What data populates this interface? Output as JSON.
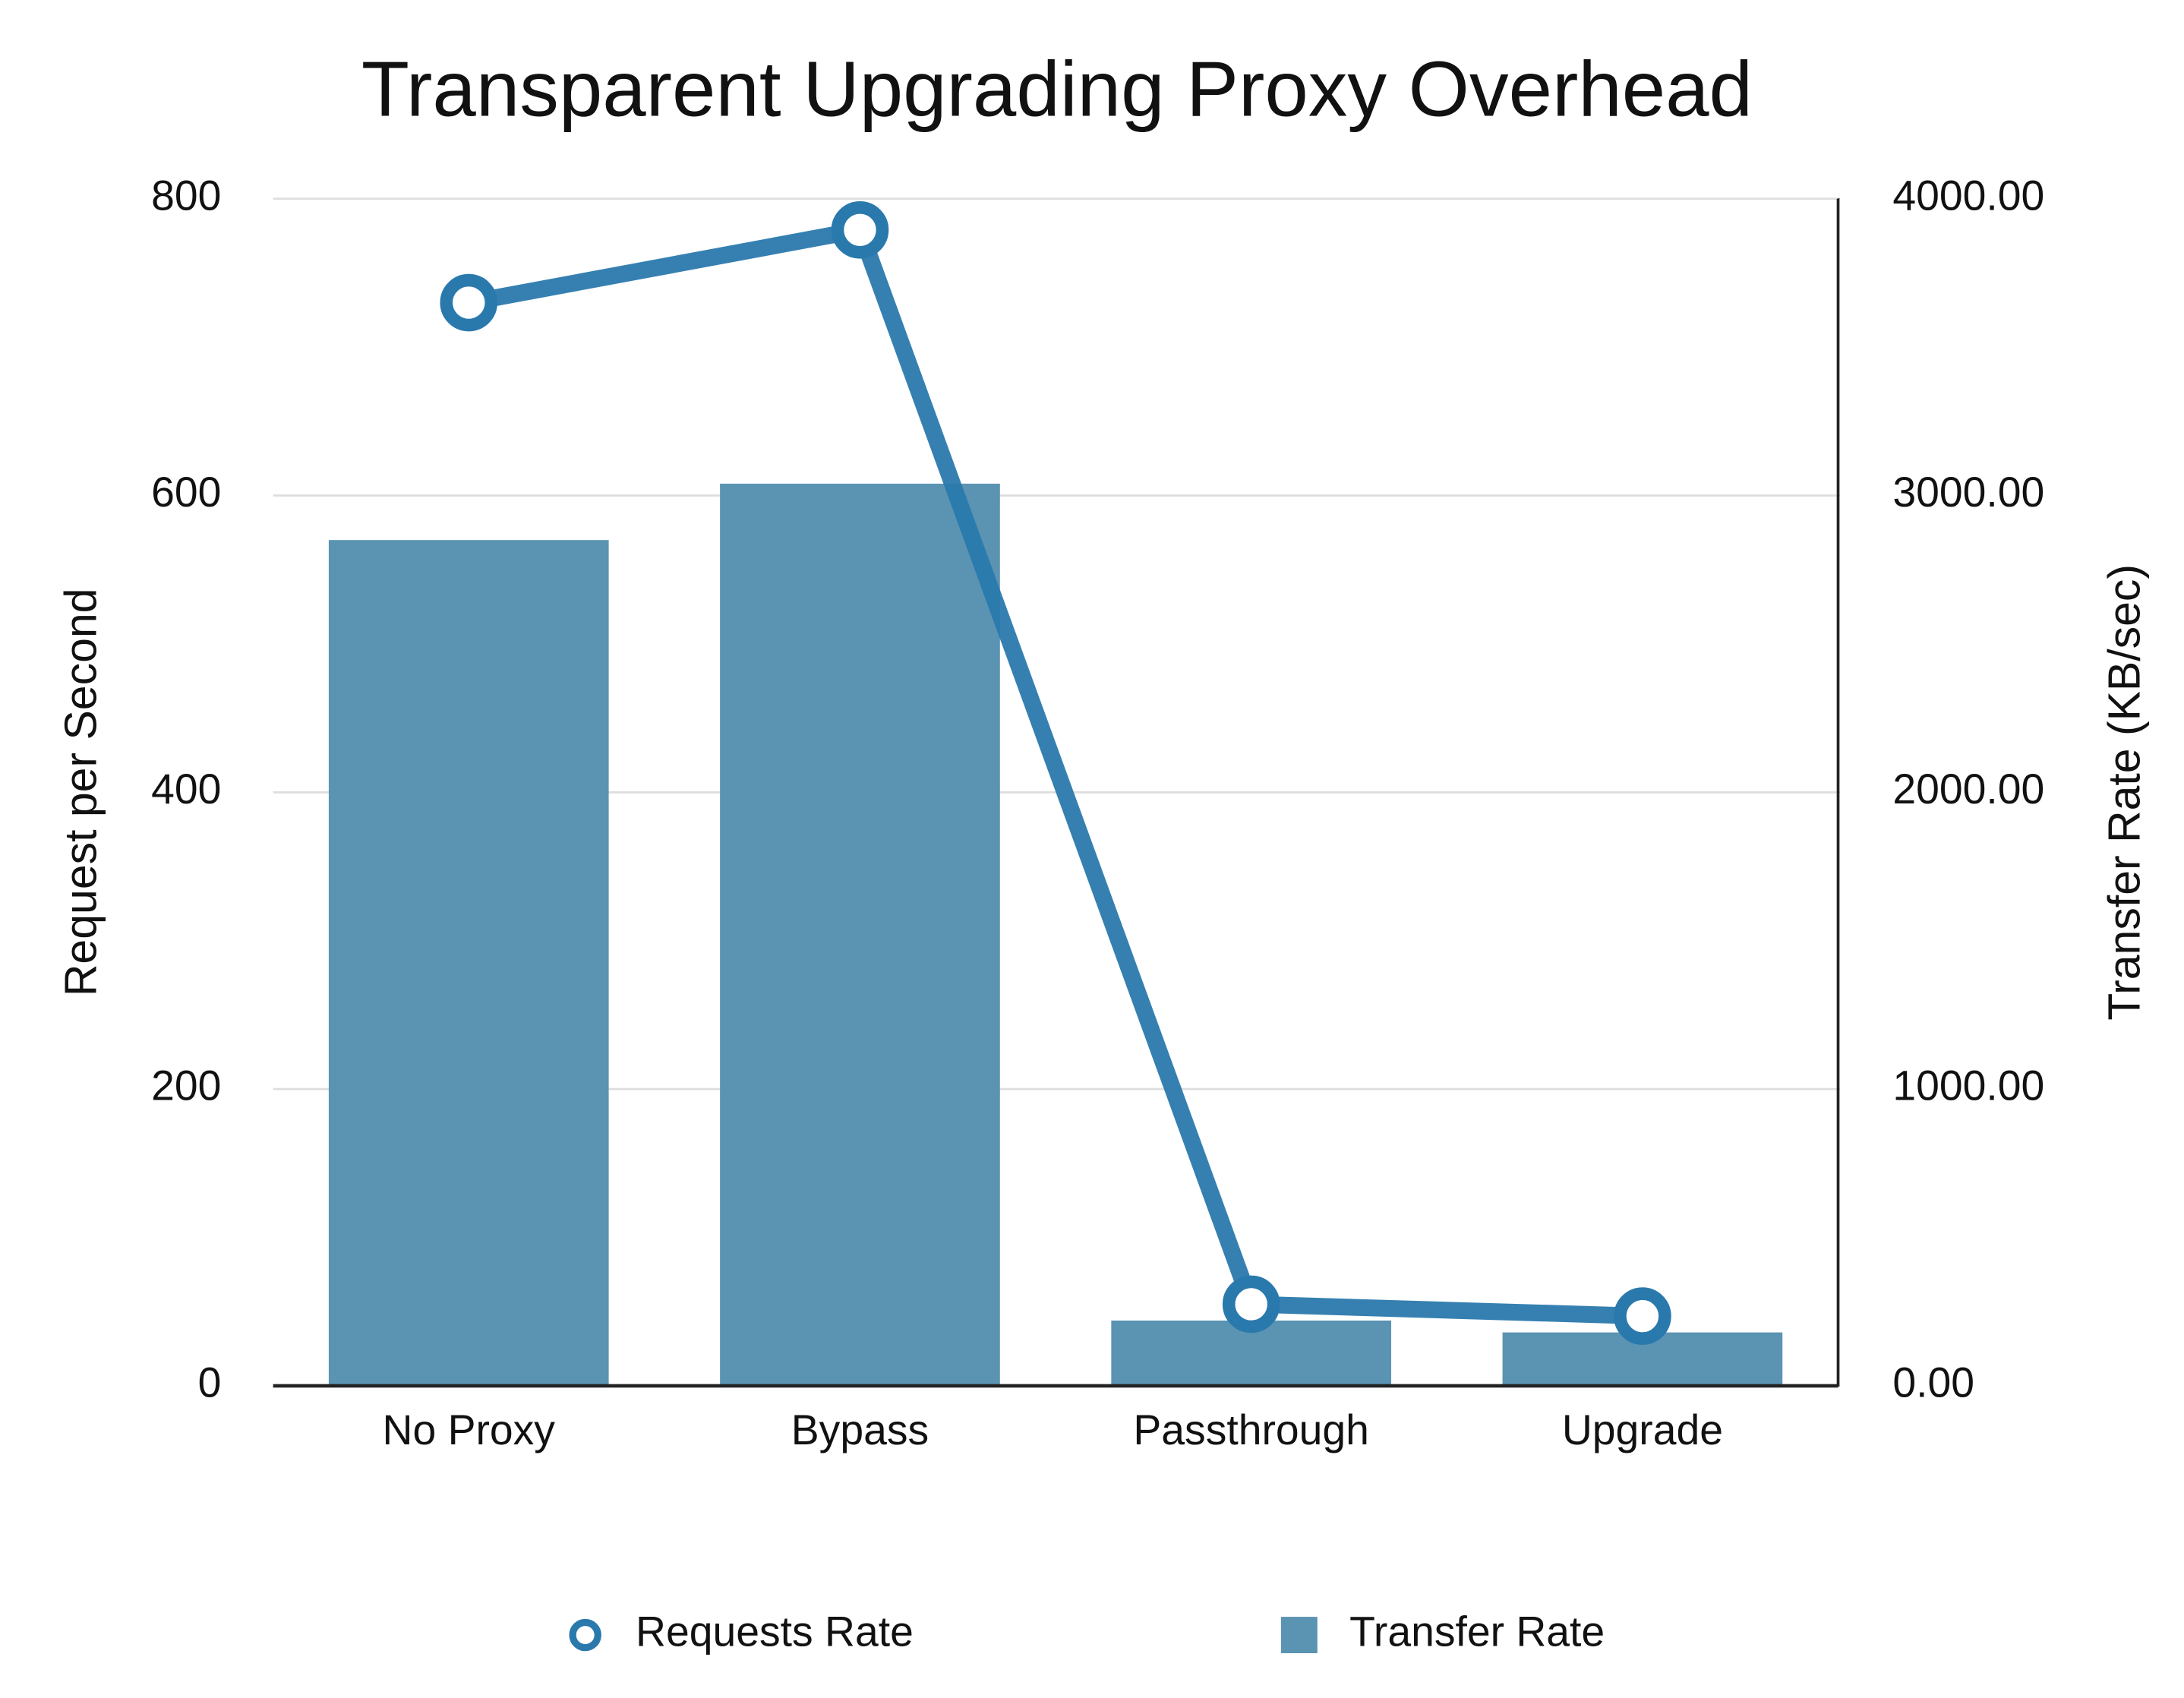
{
  "chart_data": {
    "type": "bar-line",
    "title": "Transparent Upgrading Proxy Overhead",
    "categories": [
      "No Proxy",
      "Bypass",
      "Passthrough",
      "Upgrade"
    ],
    "ylabel": "Request per Second",
    "y2label": "Transfer Rate (KB/sec)",
    "ylim": [
      0,
      800
    ],
    "yticks": [
      0,
      200,
      400,
      600,
      800
    ],
    "y2lim": [
      0,
      4000
    ],
    "y2ticks": [
      {
        "value": 0,
        "label": "0.00"
      },
      {
        "value": 1000,
        "label": "1000.00"
      },
      {
        "value": 2000,
        "label": "2000.00"
      },
      {
        "value": 3000,
        "label": "3000.00"
      },
      {
        "value": 4000,
        "label": "4000.00"
      }
    ],
    "grid": true,
    "legend": "bottom",
    "series": [
      {
        "name": "Requests Rate",
        "type": "line",
        "color": "#2a79ad",
        "axis": "y",
        "values": [
          730,
          779,
          55,
          47
        ]
      },
      {
        "name": "Transfer Rate",
        "type": "bar",
        "color": "#5b93b3",
        "axis": "y2",
        "values": [
          2850,
          3040,
          220,
          180
        ]
      }
    ]
  }
}
